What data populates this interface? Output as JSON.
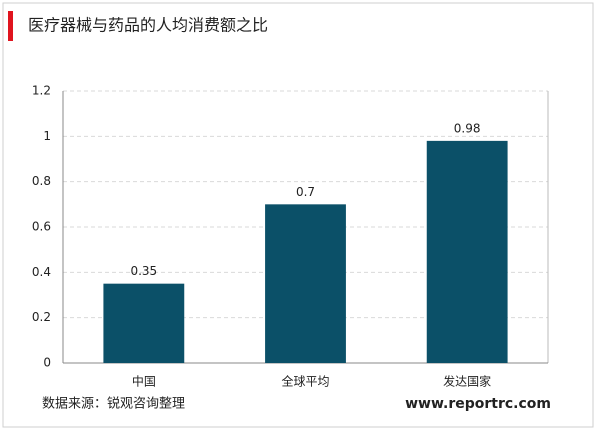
{
  "chart_data": {
    "type": "bar",
    "title": "医疗器械与药品的人均消费额之比",
    "categories": [
      "中国",
      "全球平均",
      "发达国家"
    ],
    "values": [
      0.35,
      0.7,
      0.98
    ],
    "color": "#0b5068",
    "ylim": [
      0,
      1.2
    ],
    "yticks": [
      0,
      0.2,
      0.4,
      0.6,
      0.8,
      1,
      1.2
    ],
    "grid": true,
    "source": "数据来源：锐观咨询整理",
    "website": "www.reportrc.com"
  }
}
